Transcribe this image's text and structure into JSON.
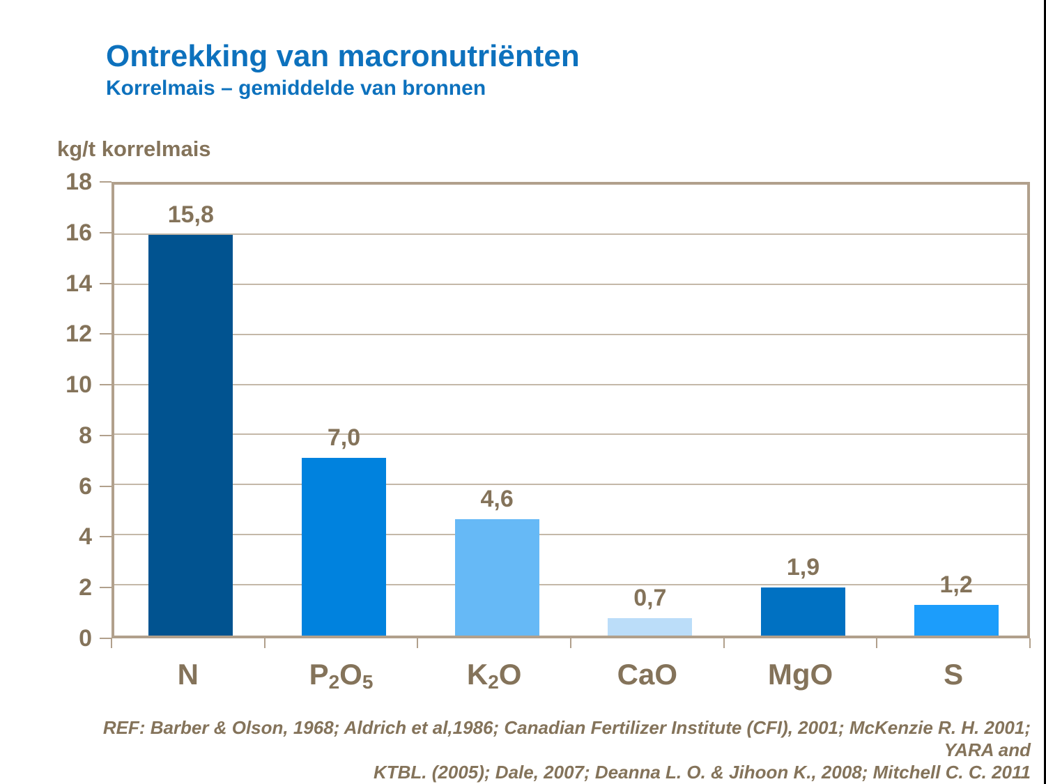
{
  "header": {
    "title": "Ontrekking van macronutriënten",
    "subtitle": "Korrelmais – gemiddelde van bronnen",
    "title_color": "#0d71bd"
  },
  "chart_data": {
    "type": "bar",
    "title": "Ontrekking van macronutriënten",
    "subtitle": "Korrelmais – gemiddelde van bronnen",
    "ylabel": "kg/t korrelmais",
    "xlabel": "",
    "categories": [
      "N",
      "P2O5",
      "K2O",
      "CaO",
      "MgO",
      "S"
    ],
    "categories_rich": [
      [
        {
          "t": "N"
        }
      ],
      [
        {
          "t": "P"
        },
        {
          "t": "2",
          "sub": true
        },
        {
          "t": "O"
        },
        {
          "t": "5",
          "sub": true
        }
      ],
      [
        {
          "t": "K"
        },
        {
          "t": "2",
          "sub": true
        },
        {
          "t": "O"
        }
      ],
      [
        {
          "t": "CaO"
        }
      ],
      [
        {
          "t": "MgO"
        }
      ],
      [
        {
          "t": "S"
        }
      ]
    ],
    "values": [
      15.8,
      7.0,
      4.6,
      0.7,
      1.9,
      1.2
    ],
    "value_labels": [
      "15,8",
      "7,0",
      "4,6",
      "0,7",
      "1,9",
      "1,2"
    ],
    "bar_colors": [
      "#015390",
      "#0082de",
      "#66b9f6",
      "#bbddf9",
      "#0071c2",
      "#1c9dfb"
    ],
    "ylim": [
      0,
      18
    ],
    "ytick_step": 2,
    "ytick_labels": [
      "0",
      "2",
      "4",
      "6",
      "8",
      "10",
      "12",
      "14",
      "16",
      "18"
    ],
    "grid": true,
    "legend": false,
    "text_color": "#84735a",
    "frame_color": "#b1a08c",
    "gridline_color": "#c4b8a8"
  },
  "footer": {
    "ref_line1": "REF: Barber & Olson, 1968; Aldrich et al,1986; Canadian Fertilizer Institute (CFI), 2001; McKenzie R. H. 2001; YARA and",
    "ref_line2": "KTBL. (2005); Dale, 2007; Deanna L. O. & Jihoon K.,  2008; Mitchell C. C. 2011"
  }
}
